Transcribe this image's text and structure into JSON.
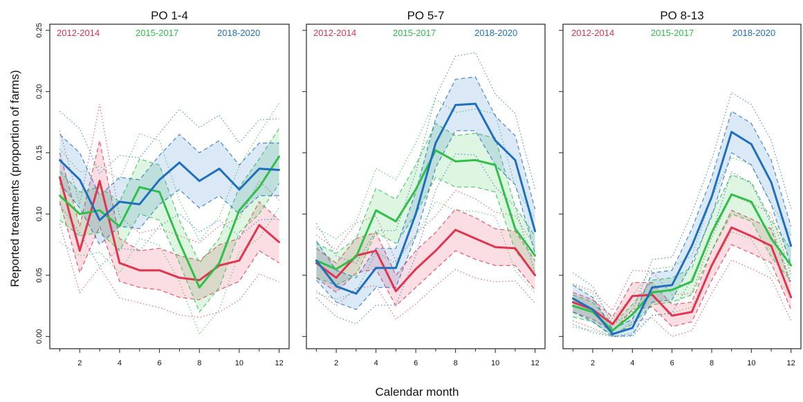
{
  "figure": {
    "ylabel": "Reported treatments (proportion of farms)",
    "xlabel": "Calendar month"
  },
  "colors": {
    "2012-2014": "#e0344f",
    "2015-2017": "#2fbf4a",
    "2018-2020": "#1f6fbf"
  },
  "legend": [
    "2012-2014",
    "2015-2017",
    "2018-2020"
  ],
  "x_ticks": [
    2,
    4,
    6,
    8,
    10,
    12
  ],
  "y_ticks": [
    "0.00",
    "0.05",
    "0.10",
    "0.15",
    "0.20",
    "0.25"
  ],
  "chart_data": [
    {
      "type": "line",
      "title": "PO 1-4",
      "xlabel": "Calendar month",
      "ylabel": "Reported treatments (proportion of farms)",
      "x": [
        1,
        2,
        3,
        4,
        5,
        6,
        7,
        8,
        9,
        10,
        11,
        12
      ],
      "xlim": [
        0.5,
        12.5
      ],
      "ylim": [
        -0.01,
        0.255
      ],
      "series": [
        {
          "name": "2012-2014",
          "values": [
            0.13,
            0.07,
            0.127,
            0.06,
            0.054,
            0.054,
            0.048,
            0.046,
            0.058,
            0.062,
            0.091,
            0.077
          ],
          "band_low": [
            0.11,
            0.052,
            0.09,
            0.045,
            0.04,
            0.038,
            0.032,
            0.03,
            0.038,
            0.045,
            0.07,
            0.06
          ],
          "band_high": [
            0.15,
            0.09,
            0.16,
            0.08,
            0.07,
            0.072,
            0.066,
            0.062,
            0.075,
            0.08,
            0.11,
            0.095
          ]
        },
        {
          "name": "2015-2017",
          "values": [
            0.115,
            0.1,
            0.103,
            0.09,
            0.122,
            0.118,
            0.077,
            0.04,
            0.06,
            0.103,
            0.122,
            0.147
          ],
          "band_low": [
            0.095,
            0.082,
            0.085,
            0.07,
            0.1,
            0.095,
            0.06,
            0.02,
            0.04,
            0.085,
            0.1,
            0.125
          ],
          "band_high": [
            0.135,
            0.118,
            0.122,
            0.11,
            0.145,
            0.14,
            0.095,
            0.06,
            0.08,
            0.122,
            0.145,
            0.17
          ]
        },
        {
          "name": "2018-2020",
          "values": [
            0.144,
            0.128,
            0.095,
            0.11,
            0.108,
            0.128,
            0.142,
            0.127,
            0.137,
            0.12,
            0.137,
            0.136
          ],
          "band_low": [
            0.125,
            0.105,
            0.075,
            0.09,
            0.088,
            0.108,
            0.12,
            0.105,
            0.115,
            0.1,
            0.115,
            0.115
          ],
          "band_high": [
            0.165,
            0.15,
            0.115,
            0.13,
            0.128,
            0.148,
            0.165,
            0.15,
            0.16,
            0.14,
            0.158,
            0.158
          ]
        }
      ]
    },
    {
      "type": "line",
      "title": "PO 5-7",
      "xlabel": "Calendar month",
      "ylabel": "Reported treatments (proportion of farms)",
      "x": [
        1,
        2,
        3,
        4,
        5,
        6,
        7,
        8,
        9,
        10,
        11,
        12
      ],
      "xlim": [
        0.5,
        12.5
      ],
      "ylim": [
        -0.01,
        0.255
      ],
      "series": [
        {
          "name": "2012-2014",
          "values": [
            0.06,
            0.048,
            0.066,
            0.07,
            0.037,
            0.055,
            0.07,
            0.087,
            0.08,
            0.073,
            0.072,
            0.05
          ],
          "band_low": [
            0.048,
            0.036,
            0.052,
            0.055,
            0.025,
            0.04,
            0.055,
            0.07,
            0.063,
            0.058,
            0.058,
            0.038
          ],
          "band_high": [
            0.072,
            0.06,
            0.08,
            0.085,
            0.05,
            0.07,
            0.085,
            0.104,
            0.097,
            0.088,
            0.086,
            0.062
          ]
        },
        {
          "name": "2015-2017",
          "values": [
            0.062,
            0.055,
            0.065,
            0.103,
            0.094,
            0.12,
            0.152,
            0.143,
            0.144,
            0.14,
            0.088,
            0.066
          ],
          "band_low": [
            0.048,
            0.042,
            0.05,
            0.085,
            0.076,
            0.1,
            0.13,
            0.122,
            0.122,
            0.118,
            0.07,
            0.05
          ],
          "band_high": [
            0.076,
            0.068,
            0.08,
            0.121,
            0.112,
            0.14,
            0.174,
            0.164,
            0.166,
            0.162,
            0.106,
            0.082
          ]
        },
        {
          "name": "2018-2020",
          "values": [
            0.062,
            0.041,
            0.035,
            0.056,
            0.056,
            0.1,
            0.158,
            0.189,
            0.19,
            0.16,
            0.144,
            0.086
          ],
          "band_low": [
            0.046,
            0.028,
            0.022,
            0.04,
            0.04,
            0.082,
            0.138,
            0.168,
            0.168,
            0.14,
            0.124,
            0.068
          ],
          "band_high": [
            0.078,
            0.054,
            0.048,
            0.072,
            0.072,
            0.118,
            0.178,
            0.21,
            0.212,
            0.18,
            0.164,
            0.104
          ]
        }
      ]
    },
    {
      "type": "line",
      "title": "PO 8-13",
      "xlabel": "Calendar month",
      "ylabel": "Reported treatments (proportion of farms)",
      "x": [
        1,
        2,
        3,
        4,
        5,
        6,
        7,
        8,
        9,
        10,
        11,
        12
      ],
      "xlim": [
        0.5,
        12.5
      ],
      "ylim": [
        -0.01,
        0.255
      ],
      "series": [
        {
          "name": "2012-2014",
          "values": [
            0.028,
            0.022,
            0.01,
            0.033,
            0.034,
            0.017,
            0.02,
            0.058,
            0.089,
            0.082,
            0.074,
            0.032
          ],
          "band_low": [
            0.02,
            0.014,
            0.004,
            0.022,
            0.024,
            0.008,
            0.012,
            0.046,
            0.075,
            0.068,
            0.06,
            0.022
          ],
          "band_high": [
            0.036,
            0.03,
            0.016,
            0.044,
            0.044,
            0.026,
            0.028,
            0.07,
            0.103,
            0.096,
            0.088,
            0.042
          ]
        },
        {
          "name": "2015-2017",
          "values": [
            0.025,
            0.02,
            0.005,
            0.018,
            0.036,
            0.038,
            0.045,
            0.085,
            0.116,
            0.11,
            0.08,
            0.058
          ],
          "band_low": [
            0.016,
            0.012,
            0.001,
            0.01,
            0.026,
            0.028,
            0.034,
            0.07,
            0.1,
            0.094,
            0.065,
            0.045
          ],
          "band_high": [
            0.034,
            0.028,
            0.01,
            0.026,
            0.046,
            0.048,
            0.056,
            0.1,
            0.132,
            0.126,
            0.095,
            0.071
          ]
        },
        {
          "name": "2018-2020",
          "values": [
            0.031,
            0.022,
            0.002,
            0.007,
            0.04,
            0.042,
            0.074,
            0.114,
            0.167,
            0.157,
            0.126,
            0.074
          ],
          "band_low": [
            0.02,
            0.012,
            0.0,
            0.001,
            0.028,
            0.03,
            0.06,
            0.098,
            0.15,
            0.14,
            0.108,
            0.058
          ],
          "band_high": [
            0.042,
            0.032,
            0.006,
            0.014,
            0.052,
            0.054,
            0.088,
            0.13,
            0.184,
            0.174,
            0.144,
            0.09
          ]
        }
      ]
    }
  ]
}
